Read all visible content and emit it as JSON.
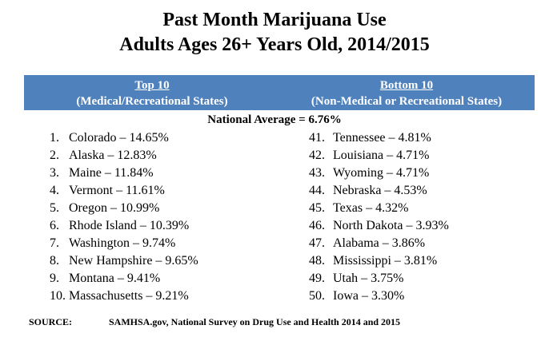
{
  "title_line1": "Past Month Marijuana Use",
  "title_line2": "Adults Ages 26+ Years Old, 2014/2015",
  "header": {
    "left_title": "Top 10",
    "left_subtitle": "(Medical/Recreational States)",
    "right_title": "Bottom 10",
    "right_subtitle": "(Non-Medical or Recreational States)",
    "band_color": "#4f81bd"
  },
  "national_average": "National Average = 6.76%",
  "top10": [
    {
      "rank": "1.",
      "text": "Colorado – 14.65%"
    },
    {
      "rank": "2.",
      "text": "Alaska – 12.83%"
    },
    {
      "rank": "3.",
      "text": "Maine – 11.84%"
    },
    {
      "rank": "4.",
      "text": "Vermont – 11.61%"
    },
    {
      "rank": "5.",
      "text": "Oregon – 10.99%"
    },
    {
      "rank": "6.",
      "text": "Rhode Island – 10.39%"
    },
    {
      "rank": "7.",
      "text": "Washington – 9.74%"
    },
    {
      "rank": "8.",
      "text": "New Hampshire – 9.65%"
    },
    {
      "rank": "9.",
      "text": "Montana – 9.41%"
    },
    {
      "rank": "10.",
      "text": "Massachusetts – 9.21%"
    }
  ],
  "bottom10": [
    {
      "rank": "41.",
      "text": "Tennessee – 4.81%"
    },
    {
      "rank": "42.",
      "text": "Louisiana – 4.71%"
    },
    {
      "rank": "43.",
      "text": "Wyoming – 4.71%"
    },
    {
      "rank": "44.",
      "text": "Nebraska – 4.53%"
    },
    {
      "rank": "45.",
      "text": "Texas – 4.32%"
    },
    {
      "rank": "46.",
      "text": "North Dakota – 3.93%"
    },
    {
      "rank": "47.",
      "text": "Alabama – 3.86%"
    },
    {
      "rank": "48.",
      "text": "Mississippi – 3.81%"
    },
    {
      "rank": "49.",
      "text": "Utah – 3.75%"
    },
    {
      "rank": "50.",
      "text": "Iowa – 3.30%"
    }
  ],
  "source": {
    "label": "SOURCE:",
    "text": "SAMHSA.gov, National Survey on Drug Use and Health 2014 and 2015"
  }
}
